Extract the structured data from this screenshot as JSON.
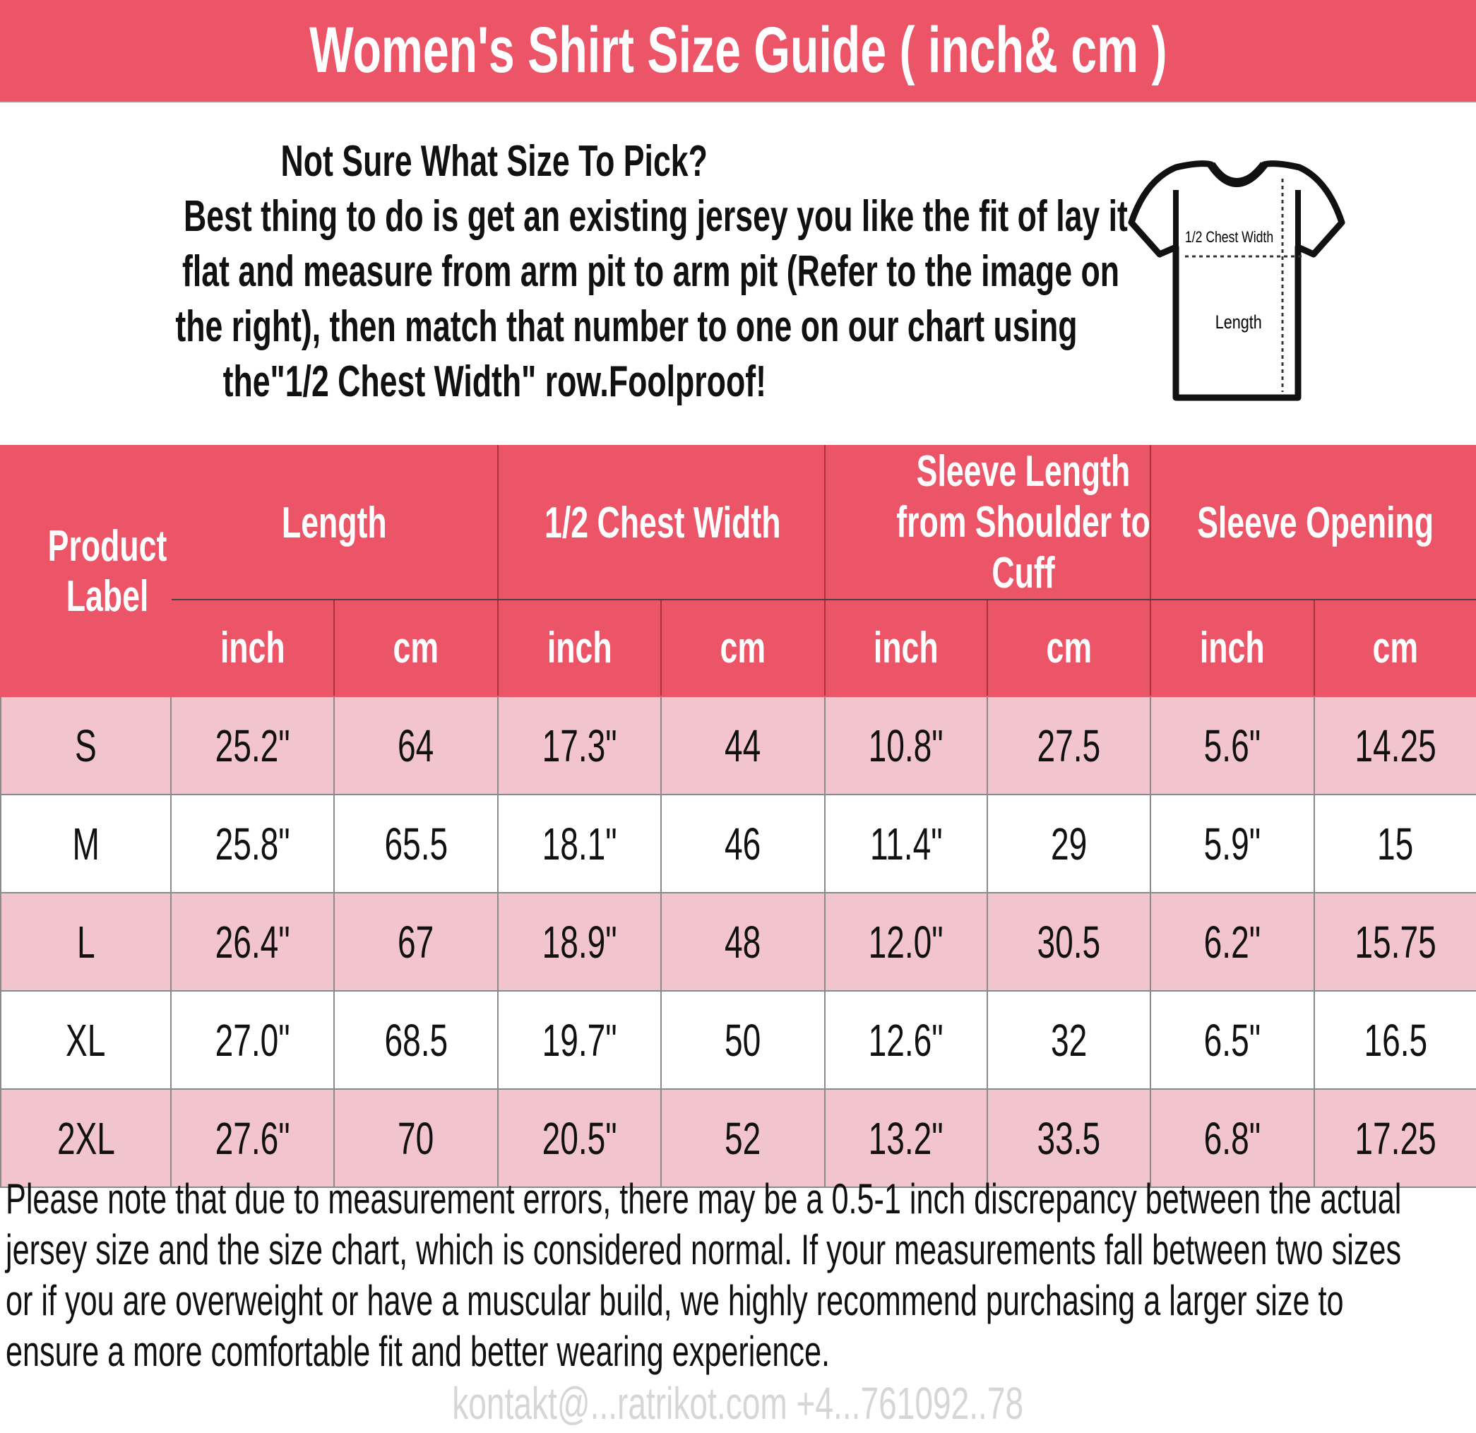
{
  "header": {
    "title": "Women's Shirt Size Guide ( inch& cm )"
  },
  "intro": {
    "lines": [
      "Not Sure What Size To Pick?",
      "Best thing to do is get an existing jersey you like the fit of lay it",
      "flat and measure from arm pit to arm pit (Refer to the image on",
      "the right), then match that number to one on our chart using",
      "the\"1/2 Chest Width\" row.Foolproof!"
    ]
  },
  "diagram": {
    "chest_label": "1/2 Chest Width",
    "length_label": "Length"
  },
  "table": {
    "first_header": "Product Label",
    "groups": [
      "Length",
      "1/2 Chest Width",
      "Sleeve Length from Shoulder to Cuff",
      "Sleeve Opening"
    ],
    "units": [
      "inch",
      "cm",
      "inch",
      "cm",
      "inch",
      "cm",
      "inch",
      "cm"
    ],
    "rows": [
      [
        "S",
        "25.2\"",
        "64",
        "17.3\"",
        "44",
        "10.8\"",
        "27.5",
        "5.6\"",
        "14.25"
      ],
      [
        "M",
        "25.8\"",
        "65.5",
        "18.1\"",
        "46",
        "11.4\"",
        "29",
        "5.9\"",
        "15"
      ],
      [
        "L",
        "26.4\"",
        "67",
        "18.9\"",
        "48",
        "12.0\"",
        "30.5",
        "6.2\"",
        "15.75"
      ],
      [
        "XL",
        "27.0\"",
        "68.5",
        "19.7\"",
        "50",
        "12.6\"",
        "32",
        "6.5\"",
        "16.5"
      ],
      [
        "2XL",
        "27.6\"",
        "70",
        "20.5\"",
        "52",
        "13.2\"",
        "33.5",
        "6.8\"",
        "17.25"
      ]
    ]
  },
  "watermark": "kontakt@...ratrikot.com  +4...761092..78",
  "note": {
    "lines": [
      "Please note that due to measurement errors, there may be a 0.5-1 inch discrepancy between the actual",
      "jersey size and the size chart, which is considered normal. If your measurements fall between two sizes",
      "or if you are overweight or have a muscular build, we highly recommend purchasing a larger size to",
      "ensure a more comfortable fit and better wearing experience."
    ]
  },
  "colors": {
    "brand": "#EC5468",
    "row_alt": "#F2C4CE"
  }
}
